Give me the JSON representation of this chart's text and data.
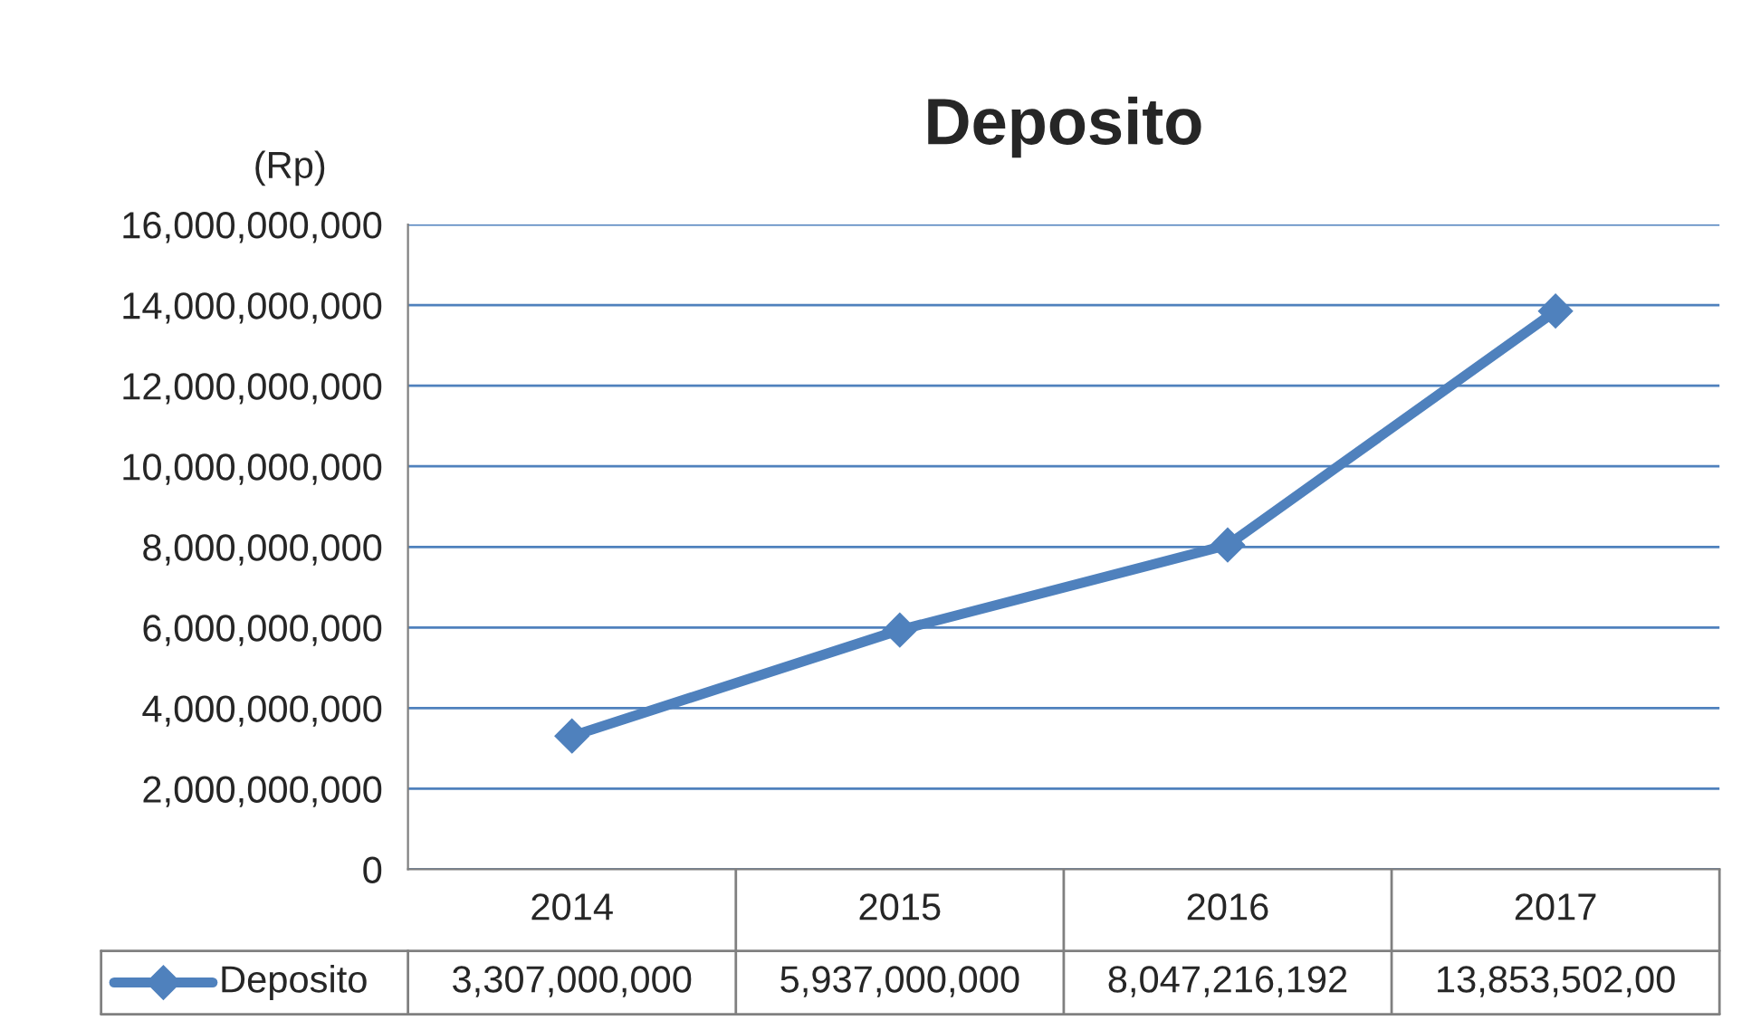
{
  "chart_data": {
    "type": "line",
    "title": "Deposito",
    "ylabel": "(Rp)",
    "categories": [
      "2014",
      "2015",
      "2016",
      "2017"
    ],
    "series": [
      {
        "name": "Deposito",
        "color": "#4f81bd",
        "values": [
          3307000000,
          5937000000,
          8047216192,
          13853502000
        ],
        "value_labels": [
          "3,307,000,000",
          "5,937,000,000",
          "8,047,216,192",
          "13,853,502,00"
        ]
      }
    ],
    "ylim": [
      0,
      16000000000
    ],
    "yticks": [
      0,
      {
        "value": 2000000000,
        "label": "2,000,000,000"
      },
      {
        "value": 4000000000,
        "label": "4,000,000,000"
      },
      {
        "value": 6000000000,
        "label": "6,000,000,000"
      },
      {
        "value": 8000000000,
        "label": "8,000,000,000"
      },
      {
        "value": 10000000000,
        "label": "10,000,000,000"
      },
      {
        "value": 12000000000,
        "label": "12,000,000,000"
      },
      {
        "value": 14000000000,
        "label": "14,000,000,000"
      },
      {
        "value": 16000000000,
        "label": "16,000,000,000"
      }
    ],
    "grid": "y",
    "marker": "diamond",
    "line_style": "solid"
  }
}
